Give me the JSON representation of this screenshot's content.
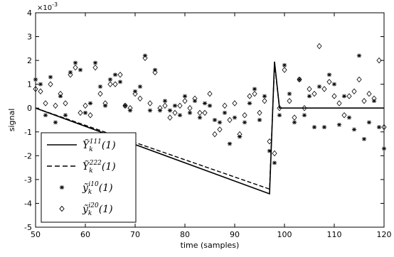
{
  "chart_data": {
    "type": "line",
    "xlabel": "time (samples)",
    "ylabel": "signal",
    "y_exponent_label": "×10",
    "y_exponent_power": "-3",
    "xlim": [
      50,
      120
    ],
    "ylim": [
      -5,
      4
    ],
    "xticks": [
      50,
      60,
      70,
      80,
      90,
      100,
      110,
      120
    ],
    "yticks": [
      -5,
      -4,
      -3,
      -2,
      -1,
      0,
      1,
      2,
      3,
      4
    ],
    "y_scale_note": "values in units of 10^-3",
    "legend_position": "lower-left",
    "series": [
      {
        "name": "Y111",
        "legend_base": "Ỹ",
        "legend_sub": "k",
        "legend_sup": "111",
        "legend_arg": "(1)",
        "style": "solid",
        "x": [
          50,
          97,
          98,
          99,
          120
        ],
        "y": [
          0,
          -3.6,
          1.95,
          0,
          0
        ]
      },
      {
        "name": "Y222",
        "legend_base": "Ỹ",
        "legend_sub": "k",
        "legend_sup": "222",
        "legend_arg": "(1)",
        "style": "dashed",
        "x": [
          50,
          97,
          98,
          99,
          120
        ],
        "y": [
          0,
          -3.4,
          1.85,
          0,
          0
        ]
      },
      {
        "name": "y_i10",
        "legend_base": "ỹ",
        "legend_sub": "k",
        "legend_sup": "i10",
        "legend_arg": "(1)",
        "marker": "star",
        "x": [
          50,
          51,
          52,
          53,
          54,
          55,
          56,
          57,
          58,
          59,
          60,
          61,
          62,
          63,
          64,
          65,
          66,
          67,
          68,
          69,
          70,
          71,
          72,
          73,
          74,
          75,
          76,
          77,
          78,
          79,
          80,
          81,
          82,
          83,
          84,
          85,
          86,
          87,
          88,
          89,
          90,
          91,
          92,
          93,
          94,
          95,
          96,
          97,
          98,
          99,
          100,
          101,
          102,
          103,
          104,
          105,
          106,
          107,
          108,
          109,
          110,
          111,
          112,
          113,
          114,
          115,
          116,
          117,
          118,
          119,
          120
        ],
        "y": [
          1.2,
          1.0,
          -0.3,
          1.3,
          -0.6,
          0.5,
          -0.3,
          1.5,
          1.9,
          1.6,
          -0.2,
          0.2,
          1.9,
          0.9,
          0.1,
          1.2,
          1.4,
          1.1,
          0.1,
          -0.1,
          0.7,
          0.9,
          2.2,
          -0.1,
          1.6,
          -0.1,
          0.3,
          -0.1,
          0.1,
          -0.3,
          0.5,
          -0.2,
          0.3,
          -0.4,
          0.2,
          0.1,
          -0.5,
          -0.6,
          -0.2,
          -1.5,
          -0.4,
          -1.2,
          -0.6,
          0.2,
          0.8,
          -0.5,
          0.5,
          -1.8,
          -2.3,
          -0.3,
          1.8,
          0.6,
          -0.6,
          1.2,
          -0.3,
          0.5,
          -0.8,
          0.9,
          -0.8,
          1.4,
          1.0,
          -0.7,
          0.5,
          -0.4,
          -0.9,
          2.2,
          -1.3,
          -0.6,
          0.3,
          -0.8,
          -1.7
        ]
      },
      {
        "name": "y_i20",
        "legend_base": "ỹ",
        "legend_sub": "k",
        "legend_sup": "i20",
        "legend_arg": "(1)",
        "marker": "diamond",
        "x": [
          50,
          51,
          52,
          53,
          54,
          55,
          56,
          57,
          58,
          59,
          60,
          61,
          62,
          63,
          64,
          65,
          66,
          67,
          68,
          69,
          70,
          71,
          72,
          73,
          74,
          75,
          76,
          77,
          78,
          79,
          80,
          81,
          82,
          83,
          84,
          85,
          86,
          87,
          88,
          89,
          90,
          91,
          92,
          93,
          94,
          95,
          96,
          97,
          98,
          99,
          100,
          101,
          102,
          103,
          104,
          105,
          106,
          107,
          108,
          109,
          110,
          111,
          112,
          113,
          114,
          115,
          116,
          117,
          118,
          119,
          120
        ],
        "y": [
          0.8,
          0.7,
          0.2,
          1.0,
          0.1,
          0.6,
          0.2,
          1.4,
          1.7,
          -0.2,
          0.1,
          -0.3,
          1.7,
          0.6,
          0.2,
          1.0,
          1.0,
          1.4,
          0.1,
          0.0,
          0.6,
          0.4,
          2.1,
          0.2,
          1.5,
          0.0,
          0.1,
          -0.4,
          -0.2,
          0.1,
          0.3,
          0.0,
          0.4,
          -0.2,
          -0.2,
          0.6,
          -1.1,
          -0.9,
          0.1,
          -0.5,
          0.2,
          -1.1,
          -0.3,
          0.5,
          0.6,
          -0.2,
          0.3,
          -1.4,
          -1.9,
          0.0,
          1.6,
          0.3,
          -0.4,
          1.2,
          0.0,
          0.8,
          0.6,
          2.6,
          0.8,
          1.1,
          0.5,
          0.2,
          -0.3,
          0.5,
          0.7,
          1.2,
          0.3,
          0.6,
          0.4,
          2.0,
          -0.8
        ]
      }
    ]
  }
}
